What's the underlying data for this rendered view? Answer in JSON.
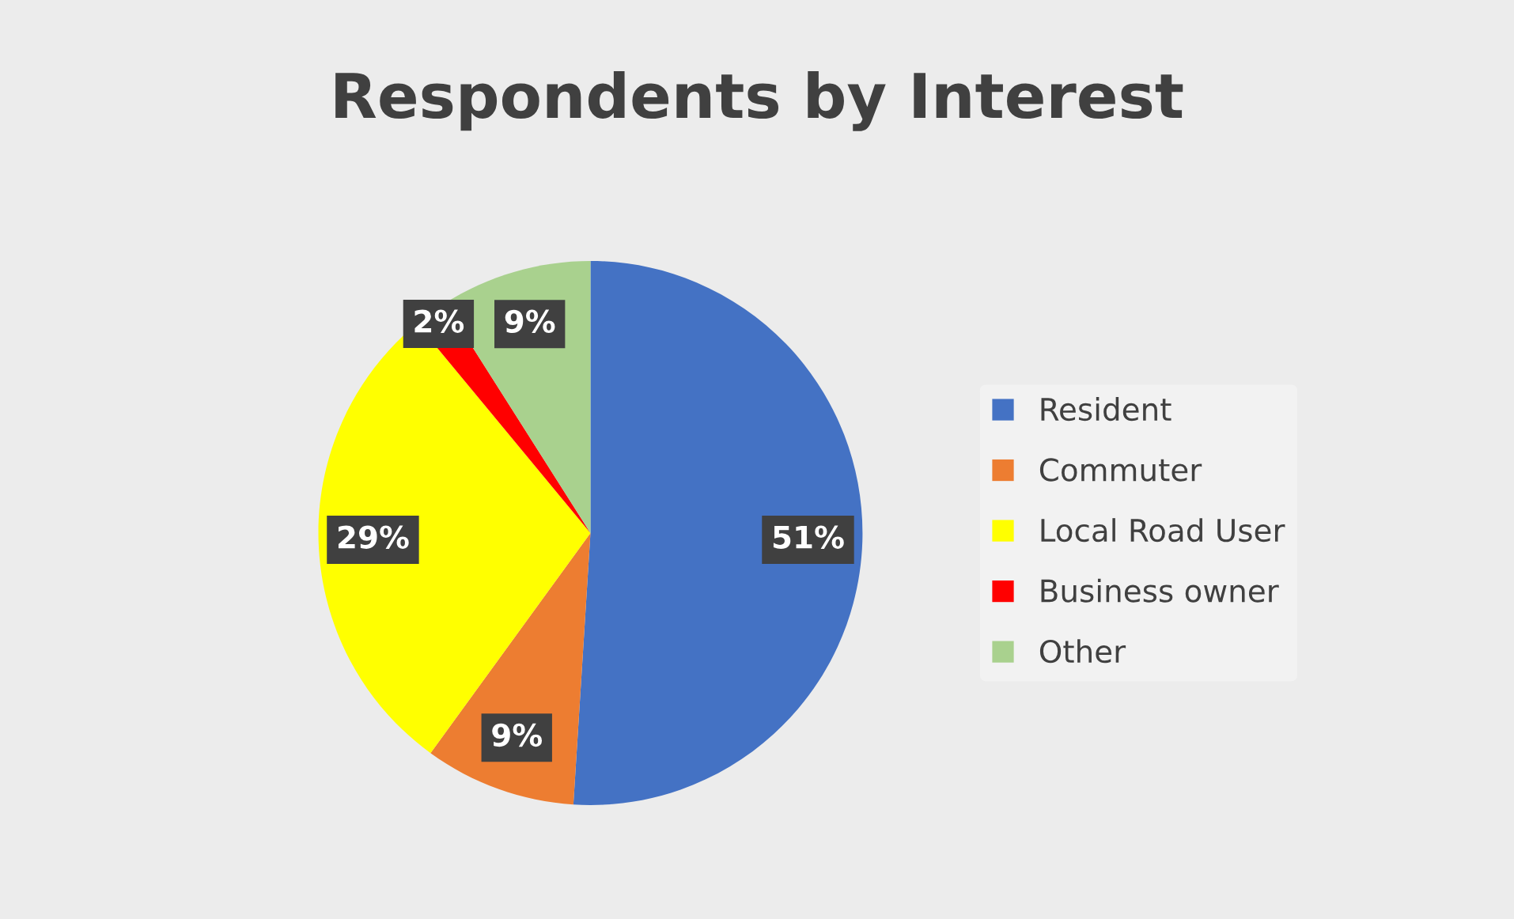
{
  "chart_data": {
    "type": "pie",
    "title": "Respondents by Interest",
    "categories": [
      "Resident",
      "Commuter",
      "Local Road User",
      "Business owner",
      "Other"
    ],
    "values": [
      51,
      9,
      29,
      2,
      9
    ],
    "colors": [
      "#4472c4",
      "#ed7d31",
      "#ffff00",
      "#ff0000",
      "#a9d18e"
    ],
    "value_labels": [
      "51%",
      "9%",
      "29%",
      "2%",
      "9%"
    ],
    "legend": "right"
  }
}
